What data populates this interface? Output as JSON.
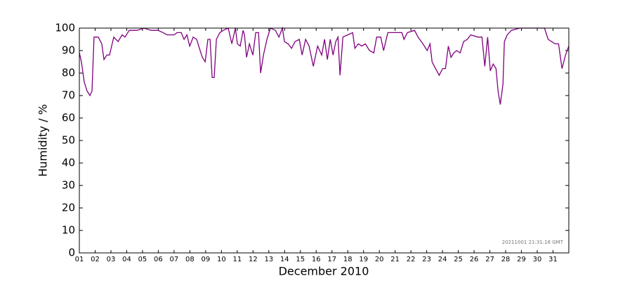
{
  "chart_data": {
    "type": "line",
    "xlabel": "December 2010",
    "ylabel": "Humidity / %",
    "annotation": "20211001 21:31:16 GMT",
    "xlim": [
      1,
      32
    ],
    "ylim": [
      0,
      100
    ],
    "yticks": [
      0,
      10,
      20,
      30,
      40,
      50,
      60,
      70,
      80,
      90,
      100
    ],
    "xticks": [
      {
        "value": 1,
        "label": "01"
      },
      {
        "value": 2,
        "label": "02"
      },
      {
        "value": 3,
        "label": "03"
      },
      {
        "value": 4,
        "label": "04"
      },
      {
        "value": 5,
        "label": "05"
      },
      {
        "value": 6,
        "label": "06"
      },
      {
        "value": 7,
        "label": "07"
      },
      {
        "value": 8,
        "label": "08"
      },
      {
        "value": 9,
        "label": "09"
      },
      {
        "value": 10,
        "label": "10"
      },
      {
        "value": 11,
        "label": "11"
      },
      {
        "value": 12,
        "label": "12"
      },
      {
        "value": 13,
        "label": "13"
      },
      {
        "value": 14,
        "label": "14"
      },
      {
        "value": 15,
        "label": "15"
      },
      {
        "value": 16,
        "label": "16"
      },
      {
        "value": 17,
        "label": "17"
      },
      {
        "value": 18,
        "label": "18"
      },
      {
        "value": 19,
        "label": "19"
      },
      {
        "value": 20,
        "label": "20"
      },
      {
        "value": 21,
        "label": "21"
      },
      {
        "value": 22,
        "label": "22"
      },
      {
        "value": 23,
        "label": "23"
      },
      {
        "value": 24,
        "label": "24"
      },
      {
        "value": 25,
        "label": "25"
      },
      {
        "value": 26,
        "label": "26"
      },
      {
        "value": 27,
        "label": "27"
      },
      {
        "value": 28,
        "label": "28"
      },
      {
        "value": 29,
        "label": "29"
      },
      {
        "value": 30,
        "label": "30"
      },
      {
        "value": 31,
        "label": "31"
      }
    ],
    "series": [
      {
        "color": "#800080",
        "x": [
          1.0,
          1.13,
          1.31,
          1.49,
          1.67,
          1.8,
          1.93,
          2.2,
          2.42,
          2.56,
          2.74,
          2.91,
          3.18,
          3.45,
          3.71,
          3.89,
          4.16,
          4.65,
          5.09,
          5.54,
          5.98,
          6.3,
          6.56,
          7.01,
          7.19,
          7.45,
          7.63,
          7.81,
          7.99,
          8.21,
          8.43,
          8.65,
          8.79,
          8.97,
          9.14,
          9.28,
          9.41,
          9.54,
          9.68,
          9.9,
          10.12,
          10.43,
          10.66,
          10.88,
          11.01,
          11.19,
          11.37,
          11.46,
          11.59,
          11.77,
          11.99,
          12.17,
          12.35,
          12.48,
          12.66,
          12.88,
          13.1,
          13.42,
          13.64,
          13.86,
          13.99,
          14.22,
          14.44,
          14.66,
          14.93,
          15.11,
          15.33,
          15.55,
          15.82,
          16.09,
          16.35,
          16.53,
          16.71,
          16.89,
          17.07,
          17.24,
          17.38,
          17.51,
          17.69,
          18.0,
          18.31,
          18.45,
          18.67,
          18.89,
          19.11,
          19.38,
          19.65,
          19.83,
          20.09,
          20.27,
          20.54,
          20.89,
          21.43,
          21.56,
          21.78,
          22.23,
          22.45,
          22.76,
          23.03,
          23.21,
          23.34,
          23.56,
          23.79,
          24.01,
          24.19,
          24.37,
          24.54,
          24.72,
          24.9,
          25.12,
          25.34,
          25.57,
          25.79,
          26.23,
          26.5,
          26.68,
          26.86,
          27.03,
          27.21,
          27.39,
          27.52,
          27.66,
          27.83,
          27.92,
          28.1,
          28.37,
          28.9,
          29.79,
          30.46,
          30.69,
          30.91,
          31.13,
          31.35,
          31.57,
          31.79,
          32.0
        ],
        "values": [
          89,
          85,
          76,
          72,
          70,
          72,
          96,
          96,
          93,
          86,
          88,
          88,
          96,
          94,
          97,
          96,
          99,
          99,
          100,
          99,
          99,
          98,
          97,
          97,
          98,
          98,
          95,
          97,
          92,
          96,
          95,
          90,
          87,
          85,
          95,
          95,
          78,
          78,
          95,
          98,
          99,
          100,
          93,
          100,
          93,
          92,
          99,
          97,
          87,
          93,
          88,
          98,
          98,
          80,
          88,
          95,
          100,
          99,
          96,
          100,
          94,
          93,
          91,
          94,
          95,
          88,
          95,
          92,
          83,
          92,
          88,
          95,
          86,
          95,
          88,
          94,
          96,
          79,
          96,
          97,
          98,
          91,
          93,
          92,
          93,
          90,
          89,
          96,
          96,
          90,
          98,
          98,
          98,
          95,
          98,
          99,
          96,
          93,
          90,
          93,
          85,
          82,
          79,
          82,
          82,
          92,
          87,
          89,
          90,
          89,
          94,
          95,
          97,
          96,
          96,
          83,
          96,
          81,
          84,
          82,
          72,
          66,
          75,
          94,
          97,
          99,
          100,
          100,
          100,
          95,
          94,
          93,
          93,
          82,
          88,
          92
        ]
      }
    ]
  }
}
